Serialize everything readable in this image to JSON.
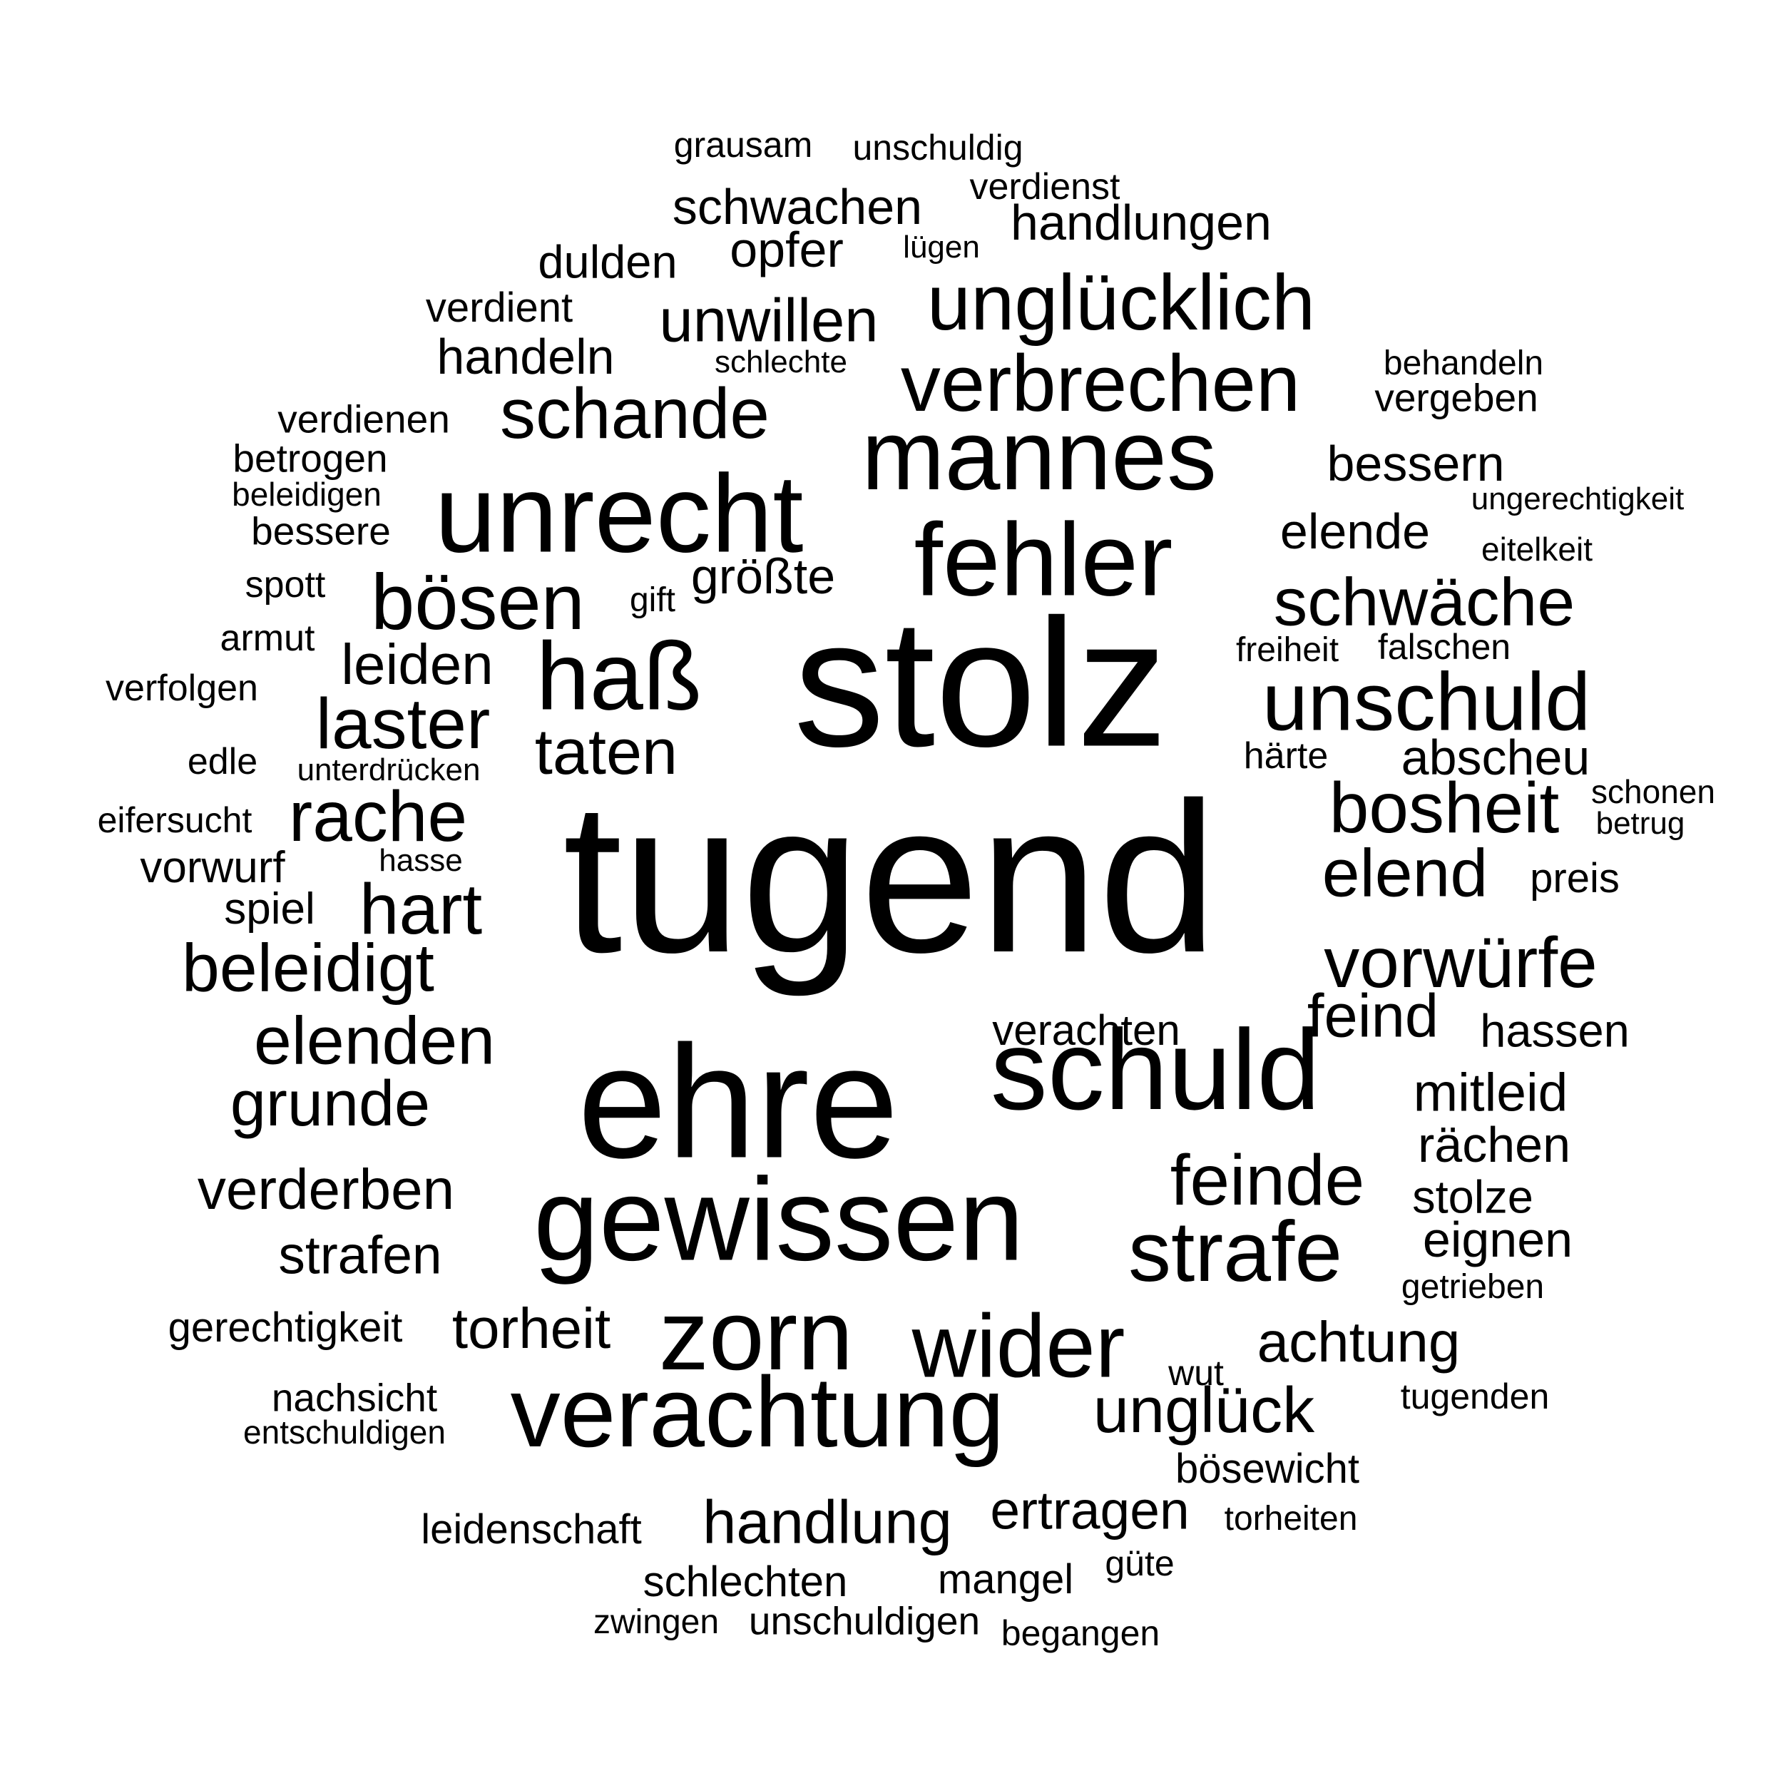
{
  "words": [
    "tugend",
    "stolz",
    "ehre",
    "schuld",
    "gewissen",
    "unrecht",
    "mannes",
    "fehler",
    "verachtung",
    "zorn",
    "haß",
    "unschuld",
    "strafe",
    "wider",
    "verbrechen",
    "unglücklich",
    "schande",
    "bösen",
    "laster",
    "rache",
    "bosheit",
    "feinde",
    "vorwürfe",
    "hart",
    "elend",
    "schwäche",
    "elenden",
    "beleidigt",
    "handlung",
    "unglück",
    "taten",
    "grunde",
    "verderben",
    "unwillen",
    "leiden",
    "feind",
    "achtung",
    "torheit",
    "ertragen",
    "abscheu",
    "bessern",
    "elende",
    "schwachen",
    "handlungen",
    "strafen",
    "mitleid",
    "rächen",
    "eignen",
    "opfer",
    "handeln",
    "größte",
    "dulden",
    "stolze",
    "schlechten",
    "hassen",
    "vorwurf",
    "verachten",
    "verdient",
    "spiel",
    "leidenschaft",
    "bösewicht",
    "gerechtigkeit",
    "verdienen",
    "betrogen",
    "preis",
    "vergeben",
    "nachsicht",
    "unschuldigen",
    "mangel",
    "bessere",
    "verfolgen",
    "grausam",
    "unschuldig",
    "verdienst",
    "begangen",
    "tugenden",
    "falschen",
    "härte",
    "spott",
    "armut",
    "behandeln",
    "entschuldigen",
    "getrieben",
    "eifersucht",
    "freiheit",
    "zwingen",
    "torheiten",
    "edle",
    "beleidigen",
    "schonen",
    "ungerechtigkeit",
    "unterdrücken",
    "eitelkeit",
    "betrug",
    "güte",
    "lügen",
    "wut",
    "schlechte",
    "hasse",
    "gift"
  ]
}
